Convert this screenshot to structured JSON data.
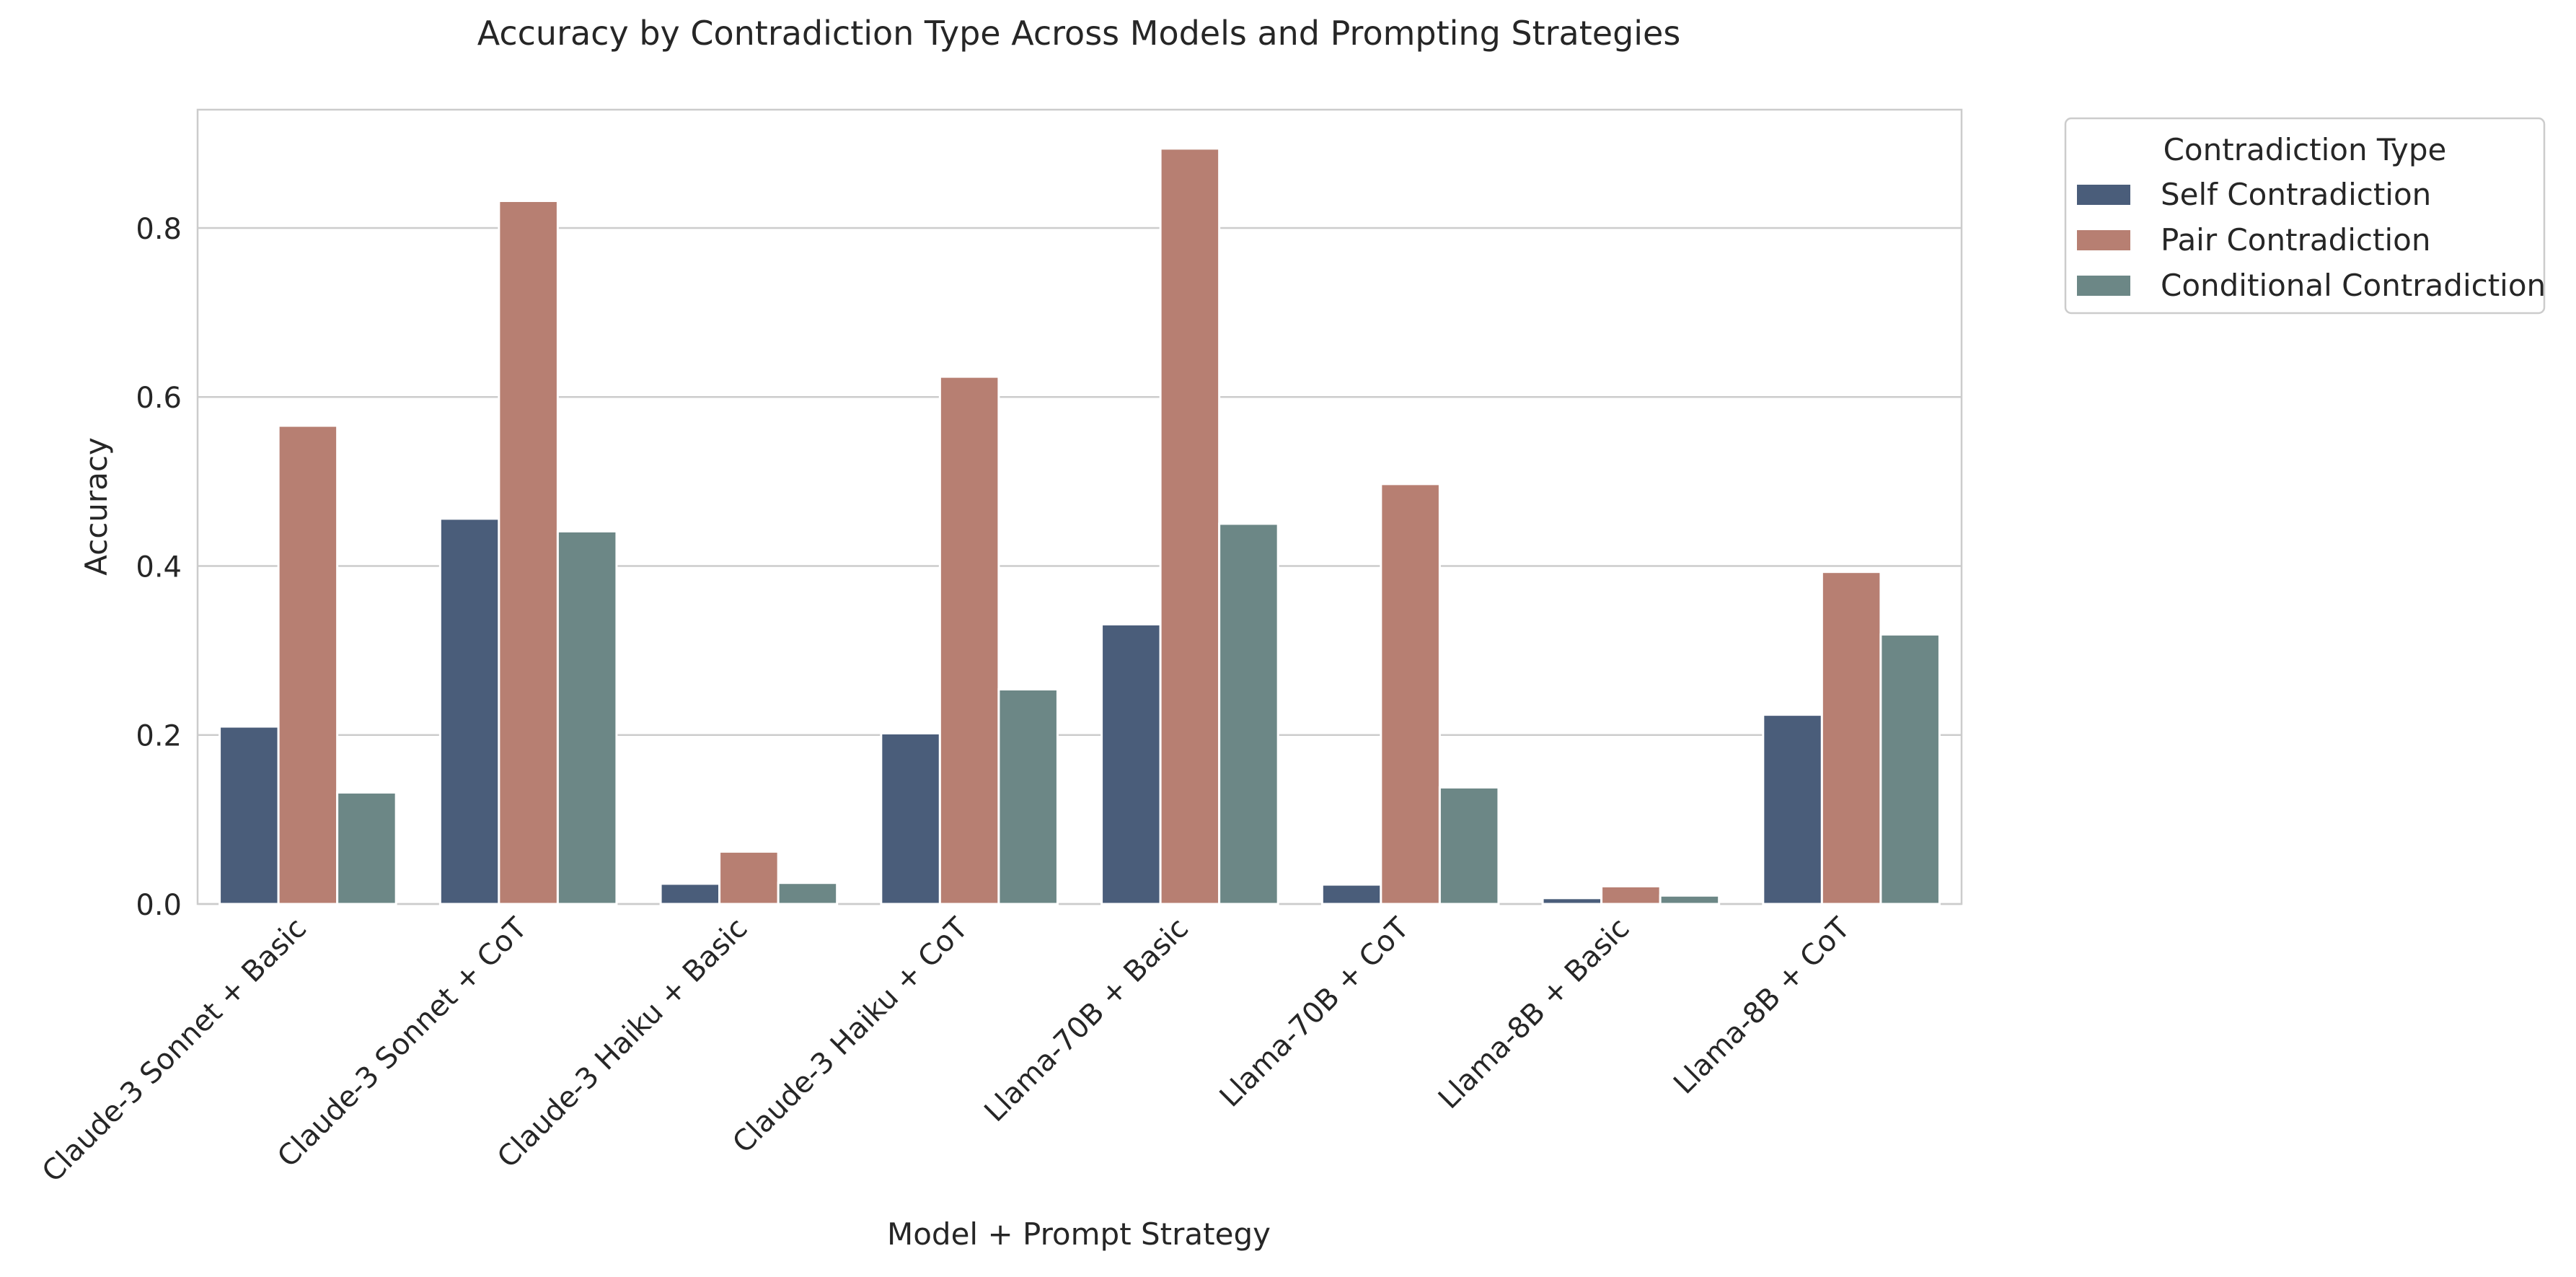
{
  "chart_data": {
    "type": "bar",
    "title": "Accuracy by Contradiction Type Across Models and Prompting Strategies",
    "xlabel": "Model + Prompt Strategy",
    "ylabel": "Accuracy",
    "ylim": [
      0,
      0.94
    ],
    "yticks": [
      0.0,
      0.2,
      0.4,
      0.6,
      0.8
    ],
    "ytick_labels": [
      "0.0",
      "0.2",
      "0.4",
      "0.6",
      "0.8"
    ],
    "grid": true,
    "legend_title": "Contradiction Type",
    "legend_position": "outside-top-right",
    "categories": [
      "Claude-3 Sonnet + Basic",
      "Claude-3 Sonnet + CoT",
      "Claude-3 Haiku + Basic",
      "Claude-3 Haiku + CoT",
      "Llama-70B + Basic",
      "Llama-70B + CoT",
      "Llama-8B + Basic",
      "Llama-8B + CoT"
    ],
    "series": [
      {
        "name": "Self Contradiction",
        "color": "#4a5d7a",
        "values": [
          0.21,
          0.456,
          0.024,
          0.202,
          0.331,
          0.023,
          0.007,
          0.224
        ]
      },
      {
        "name": "Pair Contradiction",
        "color": "#b77f72",
        "values": [
          0.566,
          0.832,
          0.062,
          0.624,
          0.894,
          0.497,
          0.021,
          0.393
        ]
      },
      {
        "name": "Conditional Contradiction",
        "color": "#6c8786",
        "values": [
          0.132,
          0.441,
          0.025,
          0.254,
          0.45,
          0.138,
          0.01,
          0.319
        ]
      }
    ]
  }
}
